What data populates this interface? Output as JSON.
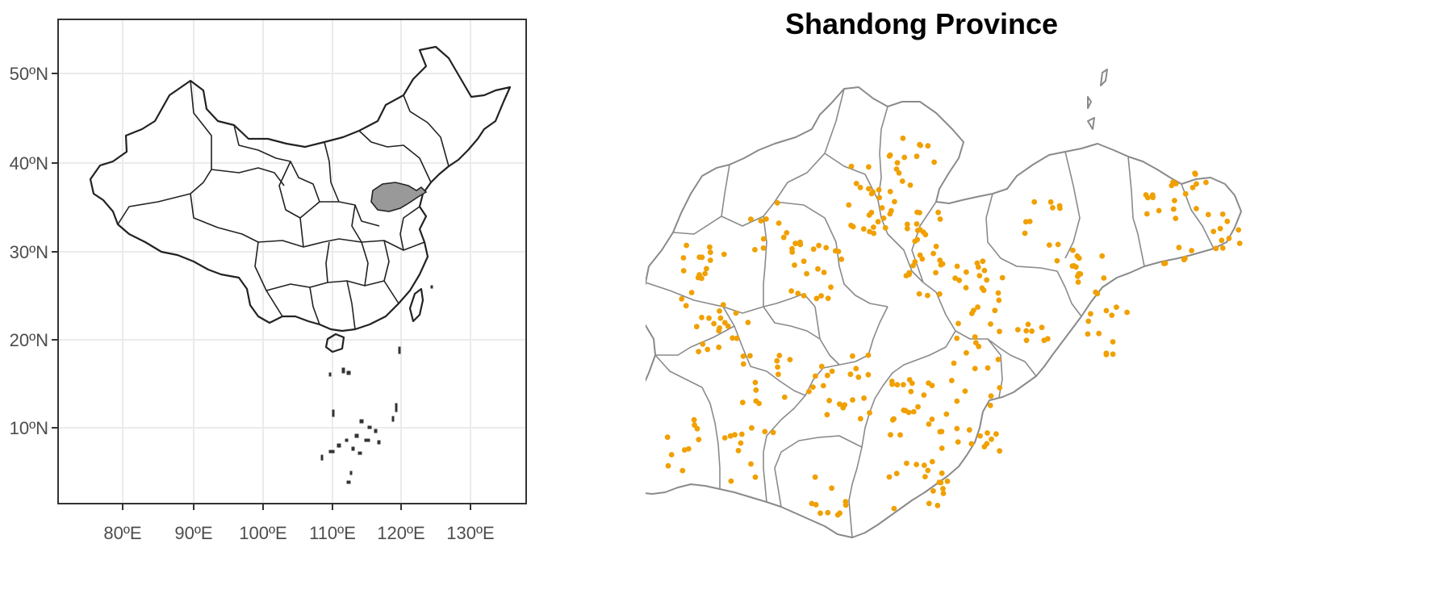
{
  "china_map": {
    "x_ticks": [
      "80ºE",
      "90ºE",
      "100ºE",
      "110ºE",
      "120ºE",
      "130ºE"
    ],
    "y_ticks": [
      "50ºN",
      "40ºN",
      "30ºN",
      "20ºN",
      "10ºN"
    ],
    "highlight_region": "Shandong",
    "highlight_color": "#999999"
  },
  "shandong_map": {
    "title": "Shandong Province",
    "point_color": "#f0a000"
  },
  "chart_data": {
    "type": "scatter",
    "title": "Shandong Province",
    "x_axis": {
      "ticks": [
        "80ºE",
        "90ºE",
        "100ºE",
        "110ºE",
        "120ºE",
        "130ºE"
      ],
      "range": [
        72,
        137
      ]
    },
    "y_axis": {
      "ticks": [
        "50ºN",
        "40ºN",
        "30ºN",
        "20ºN",
        "10ºN"
      ],
      "range": [
        2,
        56
      ]
    },
    "grid": true
  }
}
